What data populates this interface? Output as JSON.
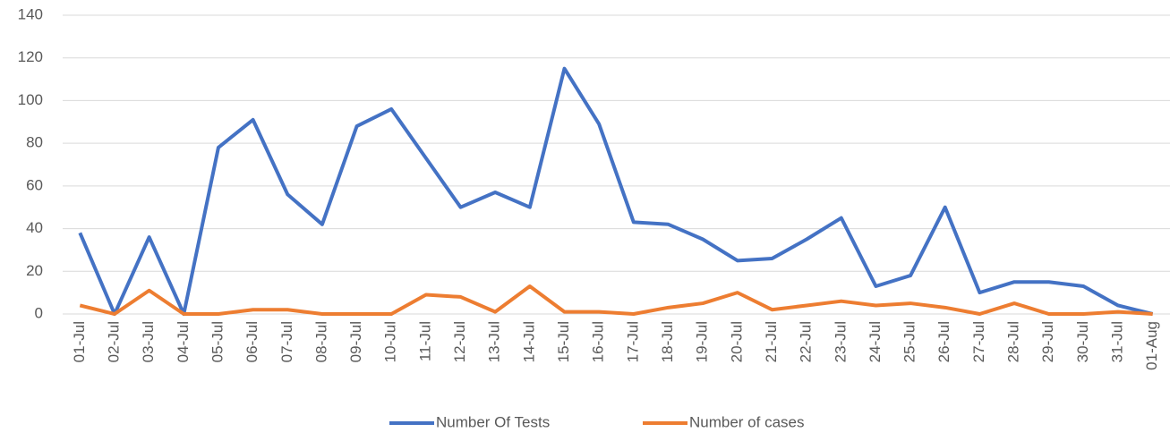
{
  "chart_data": {
    "type": "line",
    "categories": [
      "01-Jul",
      "02-Jul",
      "03-Jul",
      "04-Jul",
      "05-Jul",
      "06-Jul",
      "07-Jul",
      "08-Jul",
      "09-Jul",
      "10-Jul",
      "11-Jul",
      "12-Jul",
      "13-Jul",
      "14-Jul",
      "15-Jul",
      "16-Jul",
      "17-Jul",
      "18-Jul",
      "19-Jul",
      "20-Jul",
      "21-Jul",
      "22-Jul",
      "23-Jul",
      "24-Jul",
      "25-Jul",
      "26-Jul",
      "27-Jul",
      "28-Jul",
      "29-Jul",
      "30-Jul",
      "31-Jul",
      "01-Aug"
    ],
    "series": [
      {
        "name": "Number Of Tests",
        "color": "#4472c4",
        "values": [
          38,
          0,
          36,
          0,
          78,
          91,
          56,
          42,
          88,
          96,
          73,
          50,
          57,
          50,
          115,
          89,
          43,
          42,
          35,
          25,
          26,
          35,
          45,
          13,
          18,
          50,
          10,
          15,
          15,
          13,
          4,
          0
        ]
      },
      {
        "name": "Number of cases",
        "color": "#ed7d31",
        "values": [
          4,
          0,
          11,
          0,
          0,
          2,
          2,
          0,
          0,
          0,
          9,
          8,
          1,
          13,
          1,
          1,
          0,
          3,
          5,
          10,
          2,
          4,
          6,
          4,
          5,
          3,
          0,
          5,
          0,
          0,
          1,
          0
        ]
      }
    ],
    "ylim": [
      0,
      140
    ],
    "yticks": [
      0,
      20,
      40,
      60,
      80,
      100,
      120,
      140
    ],
    "grid": true,
    "legend": "bottom"
  }
}
